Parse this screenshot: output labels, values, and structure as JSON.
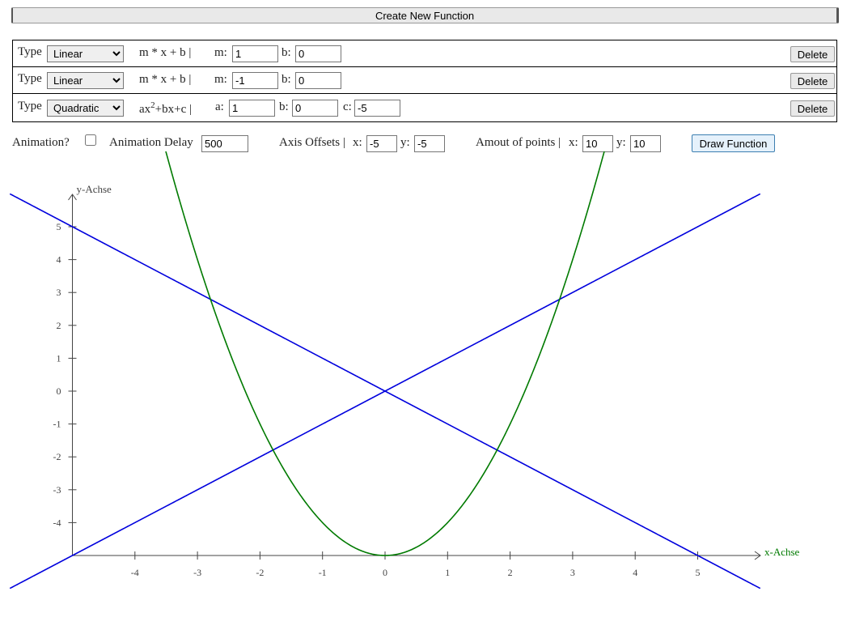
{
  "toolbar": {
    "create_button": "Create New Function"
  },
  "functions": [
    {
      "type_label": "Type",
      "type": "Linear",
      "formula": [
        "m * x + b |"
      ],
      "params": [
        {
          "name": "m:",
          "value": 1
        },
        {
          "name": "b:",
          "value": 0
        }
      ],
      "delete": "Delete",
      "color": "#0000dd"
    },
    {
      "type_label": "Type",
      "type": "Linear",
      "formula": [
        "m * x + b |"
      ],
      "params": [
        {
          "name": "m:",
          "value": -1
        },
        {
          "name": "b:",
          "value": 0
        }
      ],
      "delete": "Delete",
      "color": "#0000dd"
    },
    {
      "type_label": "Type",
      "type": "Quadratic",
      "formula": [
        "ax",
        "2",
        "+bx+c |"
      ],
      "params": [
        {
          "name": "a:",
          "value": 1
        },
        {
          "name": "b:",
          "value": 0
        },
        {
          "name": "c:",
          "value": -5
        }
      ],
      "delete": "Delete",
      "color": "#007a00"
    }
  ],
  "controls": {
    "animation_label": "Animation?",
    "delay_label": "Animation Delay",
    "delay": 500,
    "offsets_label": "Axis Offsets |",
    "offset_x_label": "x:",
    "offset_x": -5,
    "offset_y_label": "y:",
    "offset_y": -5,
    "points_label": "Amout of points |",
    "points_x_label": "x:",
    "points_x": 10,
    "points_y_label": "y:",
    "points_y": 10,
    "draw_button": "Draw Function"
  },
  "plot": {
    "x_label": "x-Achse",
    "y_label": "y-Achse",
    "xticks": [
      -4,
      -3,
      -2,
      -1,
      0,
      1,
      2,
      3,
      4,
      5
    ],
    "yticks": [
      -4,
      -3,
      -2,
      -1,
      0,
      1,
      2,
      3,
      4,
      5
    ]
  }
}
